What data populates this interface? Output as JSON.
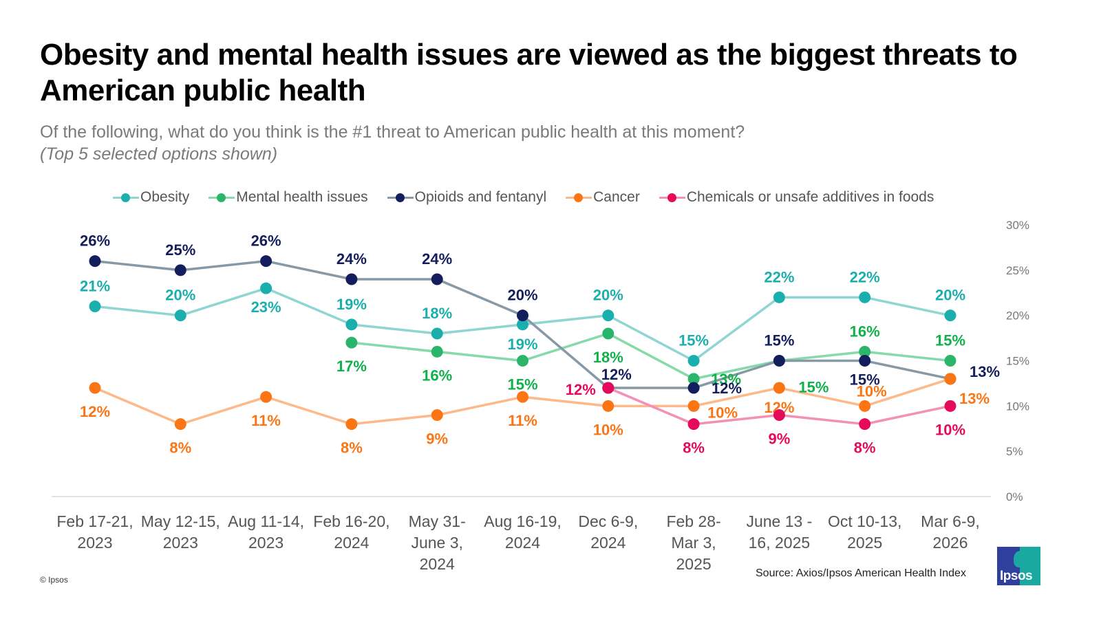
{
  "header": {
    "title": "Obesity and mental health issues are viewed as the biggest threats to American public health",
    "subtitle": "Of the following, what do you think is the #1 threat to American public health at this moment?",
    "note": "(Top 5 selected options shown)"
  },
  "footer": {
    "copyright": "© Ipsos",
    "source": "Source: Axios/Ipsos American Health Index",
    "logo_text": "Ipsos"
  },
  "chart_data": {
    "type": "line",
    "title": "Obesity and mental health issues are viewed as the biggest threats to American public health",
    "xlabel": "",
    "ylabel": "",
    "ylim": [
      0,
      30
    ],
    "yticks": [
      0,
      5,
      10,
      15,
      20,
      25,
      30
    ],
    "ytick_labels": [
      "0%",
      "5%",
      "10%",
      "15%",
      "20%",
      "25%",
      "30%"
    ],
    "y_axis_position": "right",
    "grid": false,
    "legend_position": "top",
    "categories": [
      [
        "Feb 17-21,",
        "2023"
      ],
      [
        "May 12-15,",
        "2023"
      ],
      [
        "Aug 11-14,",
        "2023"
      ],
      [
        "Feb 16-20,",
        "2024"
      ],
      [
        "May 31-",
        "June 3,",
        "2024"
      ],
      [
        "Aug 16-19,",
        "2024"
      ],
      [
        "Dec 6-9,",
        "2024"
      ],
      [
        "Feb 28-",
        "Mar 3,",
        "2025"
      ],
      [
        "June 13 -",
        "16, 2025"
      ],
      [
        "Oct 10-13,",
        "2025"
      ],
      [
        "Mar 6-9,",
        "2026"
      ]
    ],
    "series": [
      {
        "name": "Obesity",
        "line_color": "#8fd6d3",
        "dot_color": "#1aafad",
        "label_color": "#1aafad",
        "values": [
          21,
          20,
          23,
          19,
          18,
          19,
          20,
          15,
          22,
          22,
          20
        ]
      },
      {
        "name": "Mental health issues",
        "line_color": "#86d9a8",
        "dot_color": "#2bb56b",
        "label_color": "#10b04b",
        "values": [
          null,
          null,
          null,
          17,
          16,
          15,
          18,
          13,
          15,
          16,
          15
        ]
      },
      {
        "name": "Opioids and fentanyl",
        "line_color": "#8799a6",
        "dot_color": "#141e5c",
        "label_color": "#141e5c",
        "values": [
          26,
          25,
          26,
          24,
          24,
          20,
          12,
          12,
          15,
          15,
          13
        ]
      },
      {
        "name": "Cancer",
        "line_color": "#fdb98a",
        "dot_color": "#fc7514",
        "label_color": "#fc7514",
        "values": [
          12,
          8,
          11,
          8,
          9,
          11,
          10,
          10,
          12,
          10,
          13
        ]
      },
      {
        "name": "Chemicals or unsafe additives in foods",
        "line_color": "#f290b5",
        "dot_color": "#e60a5c",
        "label_color": "#e60a5c",
        "values": [
          null,
          null,
          null,
          null,
          null,
          null,
          12,
          8,
          9,
          8,
          10
        ]
      }
    ]
  }
}
